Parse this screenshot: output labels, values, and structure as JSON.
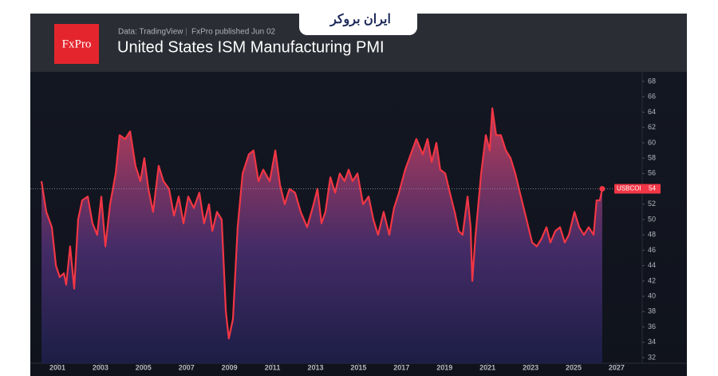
{
  "chart_data": {
    "type": "area",
    "brand": "ایران بروکر",
    "logo": "FxPro",
    "source": "Data: TradingView",
    "published": "FxPro published Jun 02",
    "title": "United States ISM Manufacturing PMI",
    "x": [
      2000.26,
      2000.48,
      2000.74,
      2000.93,
      2001.11,
      2001.3,
      2001.41,
      2001.59,
      2001.78,
      2001.96,
      2002.15,
      2002.41,
      2002.63,
      2002.85,
      2003.04,
      2003.23,
      2003.45,
      2003.71,
      2003.89,
      2004.15,
      2004.38,
      2004.63,
      2004.86,
      2005.04,
      2005.23,
      2005.45,
      2005.71,
      2005.93,
      2006.19,
      2006.42,
      2006.64,
      2006.86,
      2007.08,
      2007.34,
      2007.6,
      2007.82,
      2008.05,
      2008.2,
      2008.42,
      2008.64,
      2008.83,
      2008.97,
      2009.16,
      2009.38,
      2009.61,
      2009.9,
      2010.12,
      2010.35,
      2010.57,
      2010.87,
      2011.13,
      2011.35,
      2011.57,
      2011.79,
      2012.05,
      2012.31,
      2012.61,
      2012.91,
      2013.09,
      2013.28,
      2013.46,
      2013.69,
      2013.91,
      2014.13,
      2014.35,
      2014.54,
      2014.72,
      2014.95,
      2015.21,
      2015.47,
      2015.69,
      2015.91,
      2016.17,
      2016.43,
      2016.65,
      2016.88,
      2017.17,
      2017.43,
      2017.69,
      2017.99,
      2018.21,
      2018.4,
      2018.62,
      2018.8,
      2019.03,
      2019.29,
      2019.47,
      2019.66,
      2019.84,
      2020.07,
      2020.21,
      2020.29,
      2020.44,
      2020.7,
      2020.92,
      2021.1,
      2021.22,
      2021.4,
      2021.62,
      2021.85,
      2022.07,
      2022.29,
      2022.55,
      2022.81,
      2023.07,
      2023.29,
      2023.51,
      2023.74,
      2023.92,
      2024.15,
      2024.37,
      2024.59,
      2024.78,
      2025.04,
      2025.26,
      2025.48,
      2025.7,
      2025.93,
      2026.07,
      2026.22,
      2026.33
    ],
    "series": [
      {
        "name": "USBCOI",
        "color": "#f23645",
        "values": [
          55,
          51,
          49,
          44,
          42.5,
          43,
          41.5,
          46.5,
          41,
          50,
          52.5,
          53,
          49.5,
          48,
          53,
          46.5,
          52,
          56,
          61,
          60.5,
          61.5,
          57,
          55,
          58,
          54,
          51,
          57,
          55,
          54,
          50.5,
          53,
          49.5,
          53,
          51.5,
          53.5,
          49.5,
          52,
          48.5,
          51,
          50,
          38,
          34.5,
          37,
          49,
          56,
          58.5,
          59,
          55,
          56.5,
          55,
          59,
          54.5,
          52,
          54,
          53.5,
          51,
          49,
          52,
          54,
          49.5,
          51,
          55.5,
          53.5,
          56,
          55,
          56.5,
          55,
          56,
          52,
          53,
          50,
          48,
          51,
          48,
          51.5,
          53.5,
          56.5,
          58.5,
          60.5,
          58.5,
          60.5,
          57.5,
          60,
          56.5,
          56,
          53,
          51,
          48.5,
          48,
          53,
          49,
          42,
          48,
          56,
          61,
          59,
          64.5,
          61,
          61,
          59,
          58,
          56,
          53,
          50,
          47,
          46.5,
          47.5,
          49,
          47,
          48.5,
          49,
          47,
          48,
          51,
          49,
          48,
          49,
          48,
          52.5,
          52.5,
          54
        ]
      }
    ],
    "xlim": [
      1999.74,
      2028.19
    ],
    "ylim": [
      31.27,
      69.25
    ],
    "xticks": [
      2001,
      2003,
      2005,
      2007,
      2009,
      2011,
      2013,
      2015,
      2017,
      2019,
      2021,
      2023,
      2025,
      2027
    ],
    "yticks": [
      32,
      34,
      36,
      38,
      40,
      42,
      44,
      46,
      48,
      50,
      52,
      54,
      56,
      58,
      60,
      62,
      64,
      66,
      68
    ]
  }
}
